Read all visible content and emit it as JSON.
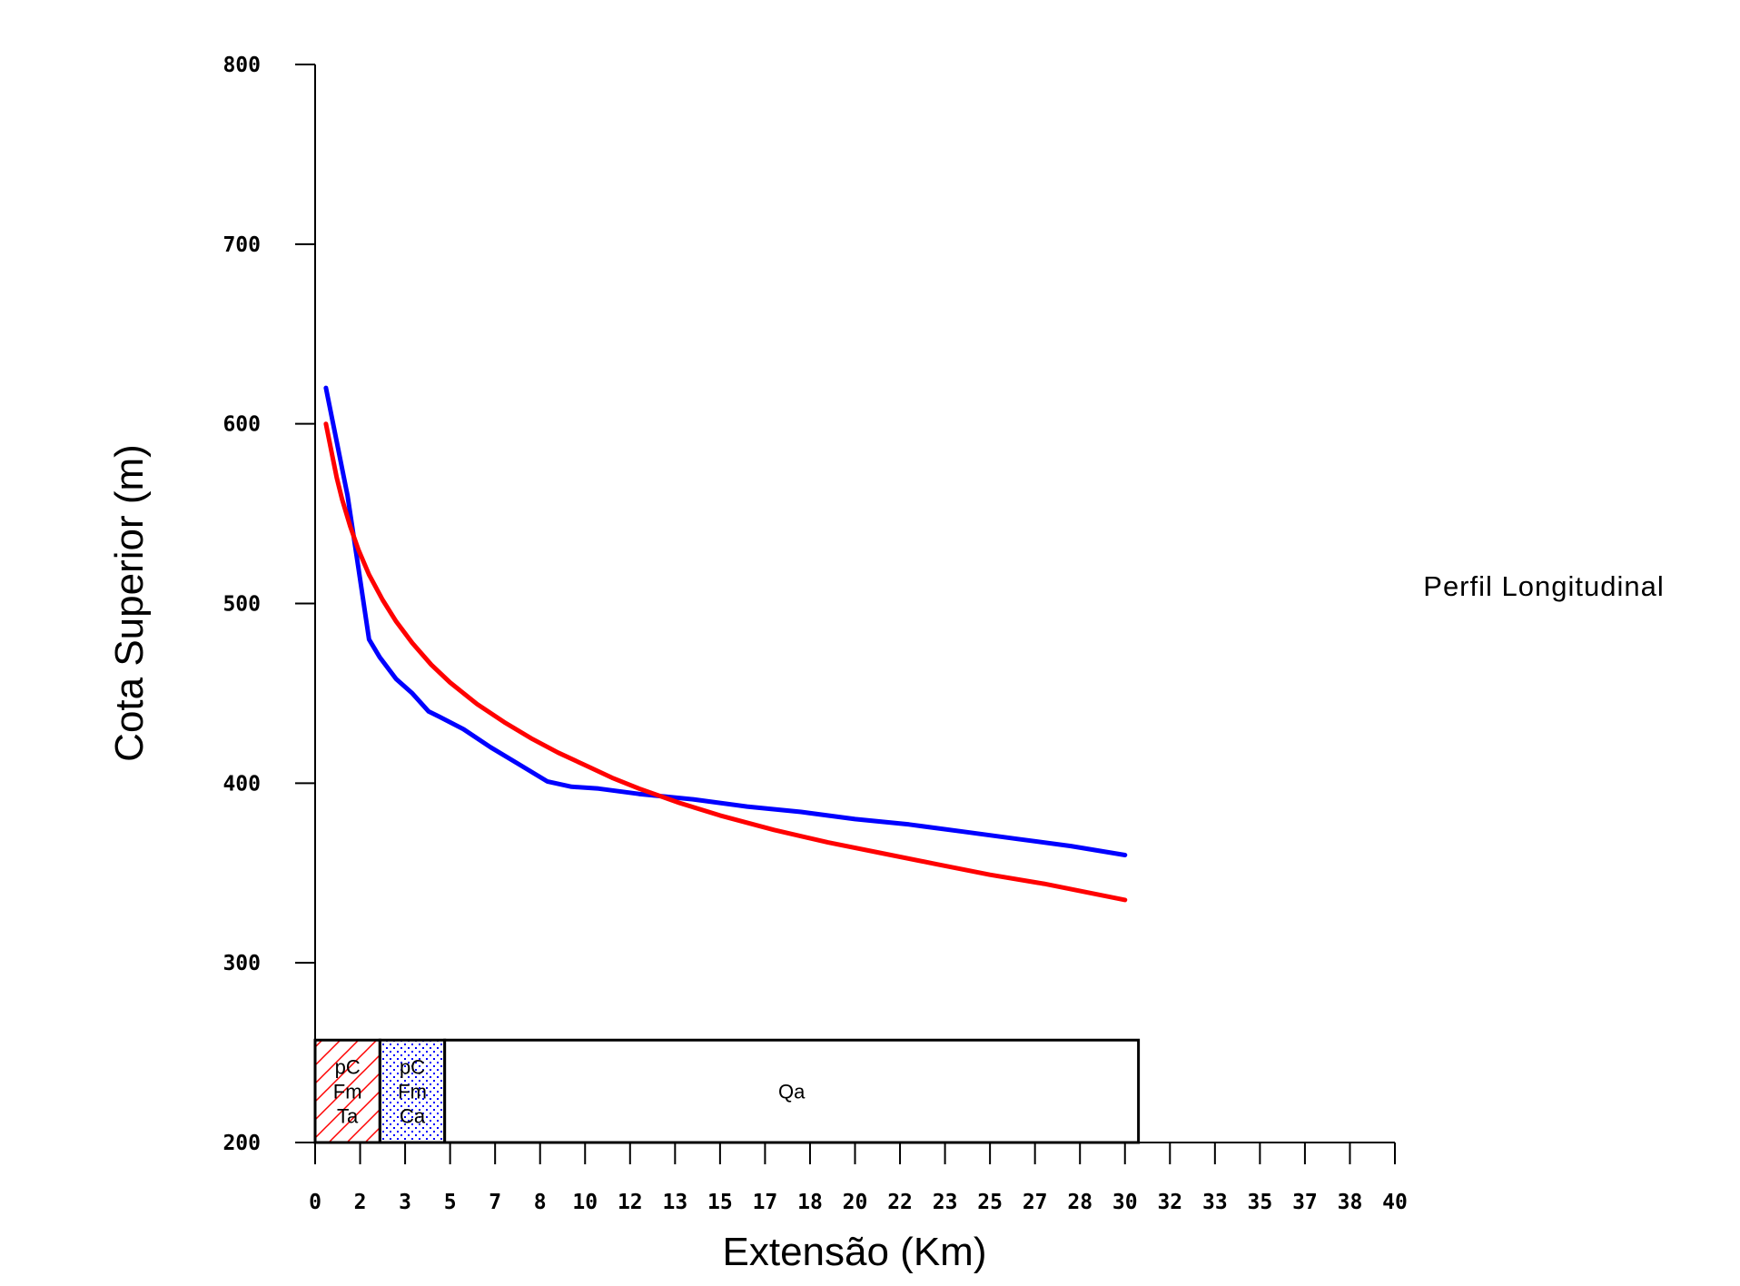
{
  "chart_data": {
    "type": "line",
    "title": "Perfil Longitudinal",
    "xlabel": "Extensão (Km)",
    "ylabel": "Cota Superior (m)",
    "ylim": [
      200,
      800
    ],
    "yticks": [
      200,
      300,
      400,
      500,
      600,
      700,
      800
    ],
    "xtick_labels": [
      "0",
      "2",
      "3",
      "5",
      "7",
      "8",
      "10",
      "12",
      "13",
      "15",
      "17",
      "18",
      "20",
      "22",
      "23",
      "25",
      "27",
      "28",
      "30",
      "32",
      "33",
      "35",
      "37",
      "38",
      "40"
    ],
    "series": [
      {
        "color": "#0000ff",
        "x": [
          0.4,
          0.8,
          1.2,
          1.6,
          2.0,
          2.4,
          3.0,
          3.6,
          4.2,
          4.6,
          5.5,
          6.5,
          7.5,
          8.6,
          9.5,
          10.5,
          12.0,
          14.0,
          16.0,
          18.0,
          20.0,
          22.0,
          24.0,
          26.0,
          28.0,
          30.0
        ],
        "y": [
          620,
          590,
          560,
          520,
          480,
          470,
          458,
          450,
          440,
          437,
          430,
          420,
          411,
          401,
          398,
          397,
          394,
          391,
          387,
          384,
          380,
          377,
          373,
          369,
          365,
          360
        ]
      },
      {
        "color": "#ff0000",
        "x": [
          0.4,
          0.6,
          0.8,
          1.0,
          1.3,
          1.6,
          2.0,
          2.5,
          3.0,
          3.6,
          4.3,
          5.0,
          6.0,
          7.0,
          8.0,
          9.0,
          10.0,
          11.0,
          12.0,
          13.5,
          15.0,
          17.0,
          19.0,
          21.0,
          23.0,
          25.0,
          27.0,
          30.0
        ],
        "y": [
          600,
          585,
          570,
          558,
          543,
          530,
          516,
          502,
          490,
          478,
          466,
          456,
          444,
          434,
          425,
          417,
          410,
          403,
          397,
          389,
          382,
          374,
          367,
          361,
          355,
          349,
          344,
          335
        ]
      }
    ],
    "formations": [
      {
        "label_lines": [
          "pC",
          "Fm",
          "Ta"
        ],
        "x_start": 0,
        "x_end": 2.4,
        "fill": "hatch",
        "color": "#ff0000"
      },
      {
        "label_lines": [
          "pC",
          "Fm",
          "Ca"
        ],
        "x_start": 2.4,
        "x_end": 4.8,
        "fill": "dots",
        "color": "#0000ff"
      },
      {
        "label_lines": [
          "Qa"
        ],
        "x_start": 4.8,
        "x_end": 30.5,
        "fill": "none",
        "color": "#000000"
      }
    ],
    "formation_band": [
      200,
      257
    ],
    "grid": false,
    "legend": "none"
  }
}
